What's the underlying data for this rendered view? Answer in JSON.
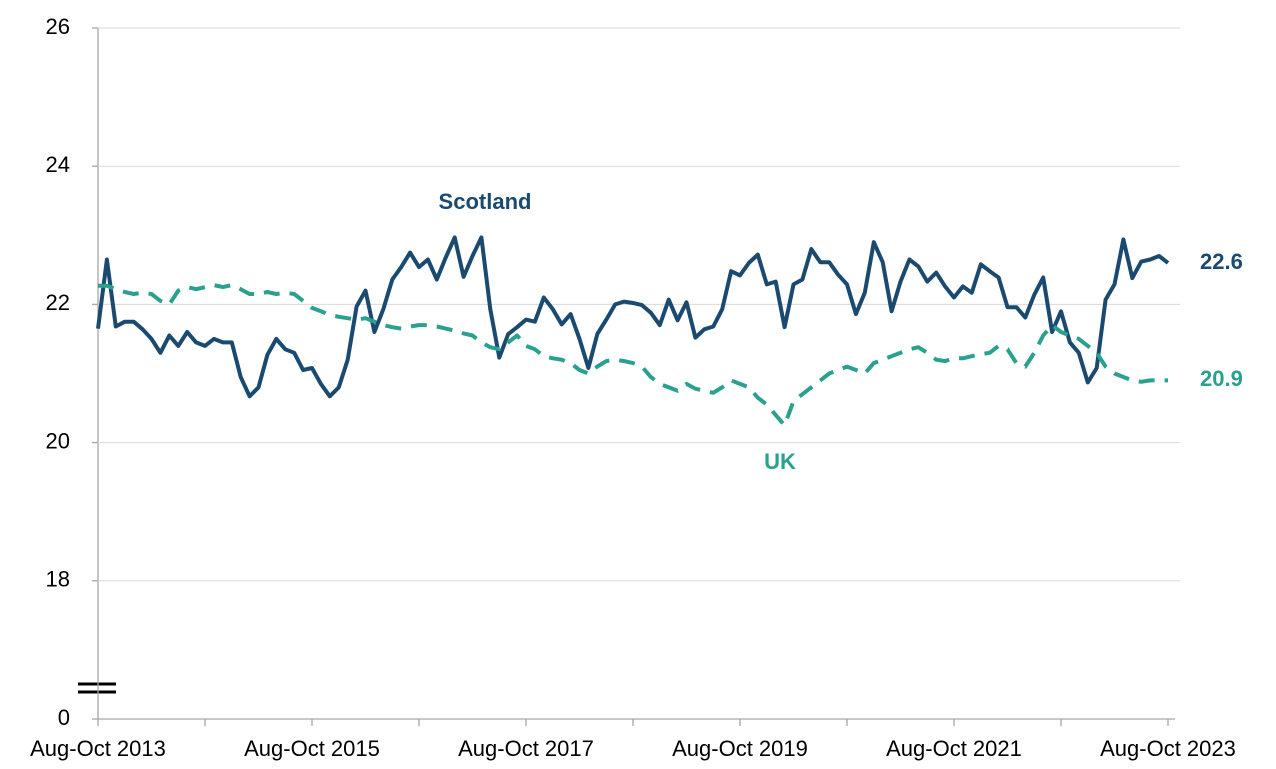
{
  "chart_data": {
    "type": "line",
    "categories": [
      "Aug-Oct 2013",
      null,
      null,
      null,
      null,
      null,
      null,
      null,
      null,
      null,
      null,
      null,
      null,
      null,
      null,
      null,
      null,
      null,
      null,
      null,
      null,
      null,
      null,
      null,
      "Aug-Oct 2015",
      null,
      null,
      null,
      null,
      null,
      null,
      null,
      null,
      null,
      null,
      null,
      null,
      null,
      null,
      null,
      null,
      null,
      null,
      null,
      null,
      null,
      null,
      null,
      "Aug-Oct 2017",
      null,
      null,
      null,
      null,
      null,
      null,
      null,
      null,
      null,
      null,
      null,
      null,
      null,
      null,
      null,
      null,
      null,
      null,
      null,
      null,
      null,
      null,
      null,
      "Aug-Oct 2019",
      null,
      null,
      null,
      null,
      null,
      null,
      null,
      null,
      null,
      null,
      null,
      null,
      null,
      null,
      null,
      null,
      null,
      null,
      null,
      null,
      null,
      null,
      null,
      "Aug-Oct 2021",
      null,
      null,
      null,
      null,
      null,
      null,
      null,
      null,
      null,
      null,
      null,
      null,
      null,
      null,
      null,
      null,
      null,
      null,
      null,
      null,
      null,
      null,
      null,
      "Aug-Oct 2023"
    ],
    "series": [
      {
        "name": "Scotland",
        "color": "#1b4a70",
        "dash": false,
        "values": [
          21.65,
          22.65,
          21.68,
          21.75,
          21.75,
          21.64,
          21.5,
          21.3,
          21.55,
          21.4,
          21.6,
          21.45,
          21.4,
          21.5,
          21.45,
          21.45,
          20.95,
          20.67,
          20.8,
          21.27,
          21.5,
          21.35,
          21.3,
          21.05,
          21.08,
          20.85,
          20.67,
          20.8,
          21.2,
          21.97,
          22.2,
          21.6,
          21.93,
          22.36,
          22.54,
          22.75,
          22.54,
          22.65,
          22.36,
          22.68,
          22.97,
          22.4,
          22.7,
          22.97,
          21.93,
          21.23,
          21.57,
          21.67,
          21.78,
          21.75,
          22.1,
          21.93,
          21.71,
          21.86,
          21.5,
          21.08,
          21.57,
          21.78,
          22.0,
          22.04,
          22.02,
          21.99,
          21.88,
          21.7,
          22.07,
          21.77,
          22.03,
          21.52,
          21.64,
          21.68,
          21.93,
          22.48,
          22.42,
          22.6,
          22.72,
          22.29,
          22.33,
          21.67,
          22.29,
          22.36,
          22.8,
          22.61,
          22.61,
          22.43,
          22.29,
          21.86,
          22.17,
          22.9,
          22.61,
          21.9,
          22.33,
          22.65,
          22.55,
          22.33,
          22.46,
          22.26,
          22.1,
          22.26,
          22.17,
          22.58,
          22.48,
          22.39,
          21.96,
          21.96,
          21.81,
          22.14,
          22.39,
          21.6,
          21.9,
          21.45,
          21.3,
          20.87,
          21.08,
          22.07,
          22.29,
          22.94,
          22.38,
          22.62,
          22.65,
          22.7,
          22.6
        ]
      },
      {
        "name": "UK",
        "color": "#2aa08e",
        "dash": true,
        "values": [
          22.27,
          22.27,
          22.22,
          22.18,
          22.15,
          22.17,
          22.15,
          22.05,
          22.0,
          22.2,
          22.25,
          22.22,
          22.25,
          22.28,
          22.25,
          22.28,
          22.22,
          22.15,
          22.15,
          22.18,
          22.15,
          22.17,
          22.15,
          22.05,
          21.95,
          21.9,
          21.85,
          21.82,
          21.8,
          21.78,
          21.8,
          21.75,
          21.7,
          21.67,
          21.65,
          21.68,
          21.7,
          21.7,
          21.68,
          21.65,
          21.62,
          21.58,
          21.55,
          21.45,
          21.38,
          21.35,
          21.45,
          21.55,
          21.4,
          21.35,
          21.25,
          21.22,
          21.2,
          21.15,
          21.05,
          21.0,
          21.1,
          21.18,
          21.2,
          21.18,
          21.15,
          21.1,
          20.95,
          20.85,
          20.8,
          20.75,
          20.85,
          20.78,
          20.75,
          20.72,
          20.8,
          20.9,
          20.85,
          20.8,
          20.65,
          20.55,
          20.4,
          20.25,
          20.6,
          20.7,
          20.8,
          20.9,
          21.0,
          21.05,
          21.1,
          21.05,
          21.0,
          21.15,
          21.2,
          21.25,
          21.3,
          21.35,
          21.38,
          21.3,
          21.2,
          21.18,
          21.22,
          21.22,
          21.25,
          21.28,
          21.3,
          21.4,
          21.35,
          21.15,
          21.1,
          21.3,
          21.55,
          21.7,
          21.6,
          21.55,
          21.5,
          21.4,
          21.3,
          21.1,
          21.0,
          20.95,
          20.9,
          20.88,
          20.9,
          20.9,
          20.9
        ]
      }
    ],
    "ylim": [
      0,
      26
    ],
    "yticks": [
      0,
      18,
      20,
      22,
      24,
      26
    ],
    "axis_break": [
      0,
      16
    ],
    "grid": true
  }
}
